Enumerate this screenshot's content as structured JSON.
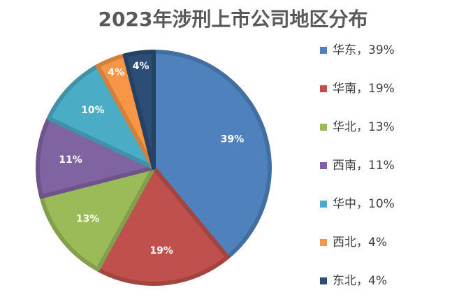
{
  "chart_data": {
    "type": "pie",
    "title": "2023年涉刑上市公司地区分布",
    "categories": [
      "华东",
      "华南",
      "华北",
      "西南",
      "华中",
      "西北",
      "东北"
    ],
    "values": [
      39,
      19,
      13,
      11,
      10,
      4,
      4
    ],
    "data_labels": [
      "39%",
      "19%",
      "13%",
      "11%",
      "10%",
      "4%",
      "4%"
    ],
    "legend_labels": [
      "华东，39%",
      "华南，19%",
      "华北，13%",
      "西南，11%",
      "华中，10%",
      "西北，4%",
      "东北，4%"
    ],
    "colors": [
      "#4F81BD",
      "#C0504D",
      "#9BBB59",
      "#8064A2",
      "#4BACC6",
      "#F79646",
      "#2C4D75"
    ],
    "legend_position": "right",
    "start_angle": "12 o'clock, clockwise"
  }
}
